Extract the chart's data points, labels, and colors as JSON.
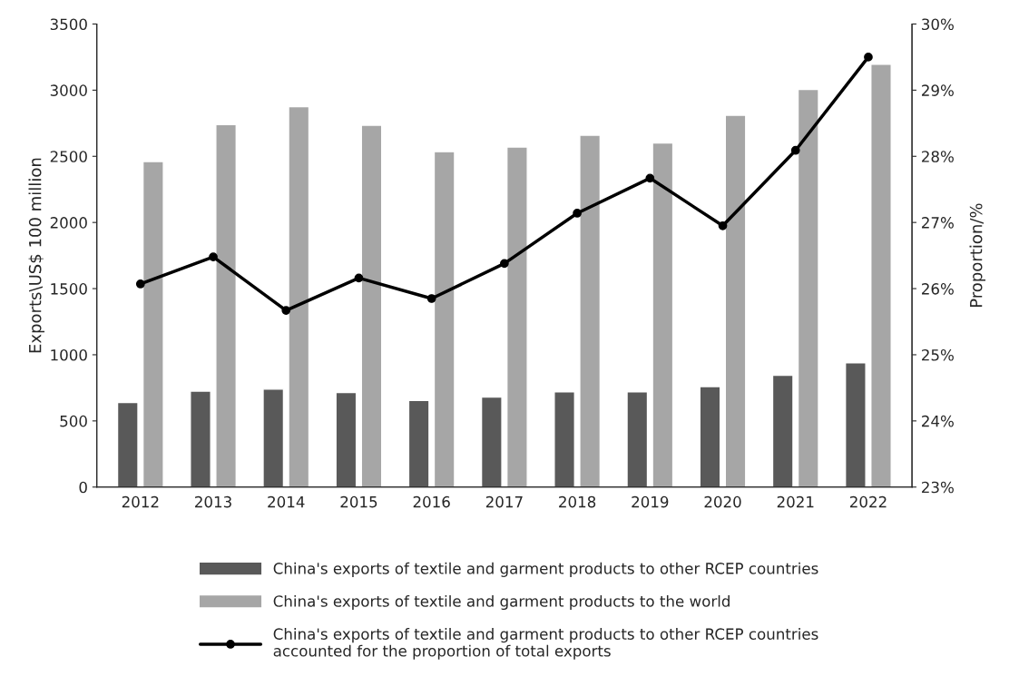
{
  "chart_data": {
    "type": "bar",
    "categories": [
      "2012",
      "2013",
      "2014",
      "2015",
      "2016",
      "2017",
      "2018",
      "2019",
      "2020",
      "2021",
      "2022"
    ],
    "ylabel": "Exports\\US$ 100 million",
    "y2label": "Proportion/%",
    "series": [
      {
        "name": "China's exports of textile and garment products to other RCEP countries",
        "color": "#595959",
        "values": [
          640,
          725,
          740,
          715,
          655,
          680,
          720,
          720,
          760,
          845,
          940
        ]
      },
      {
        "name": "China's exports of textile and garment products to the world",
        "color": "#a6a6a6",
        "values": [
          2460,
          2740,
          2875,
          2735,
          2535,
          2570,
          2660,
          2600,
          2810,
          3005,
          3195
        ]
      },
      {
        "name": "China's exports of textile and garment products to other RCEP countries accounted for the proportion of total exports",
        "type": "line",
        "axis": "y2",
        "color": "#000000",
        "marker": "circle",
        "line_style": "solid",
        "values": [
          26.07,
          26.48,
          25.67,
          26.16,
          25.85,
          26.38,
          27.14,
          27.67,
          26.95,
          28.09,
          29.5
        ]
      }
    ],
    "ylim": [
      0,
      3500
    ],
    "yticks": [
      0,
      500,
      1000,
      1500,
      2000,
      2500,
      3000,
      3500
    ],
    "y2lim": [
      23,
      30
    ],
    "y2ticks": [
      {
        "value": 23,
        "label": "23%"
      },
      {
        "value": 24,
        "label": "24%"
      },
      {
        "value": 25,
        "label": "25%"
      },
      {
        "value": 26,
        "label": "26%"
      },
      {
        "value": 27,
        "label": "27%"
      },
      {
        "value": 28,
        "label": "28%"
      },
      {
        "value": 29,
        "label": "29%"
      },
      {
        "value": 30,
        "label": "30%"
      }
    ],
    "grid": false,
    "legend": "bottom"
  }
}
